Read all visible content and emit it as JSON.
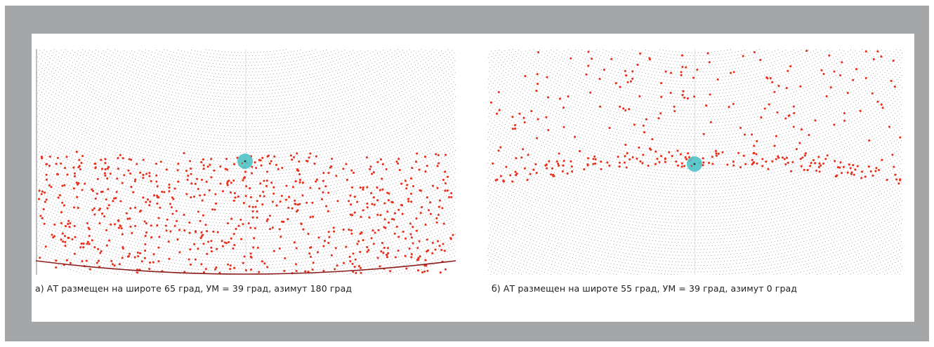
{
  "figure": {
    "panels": [
      {
        "id": "a",
        "caption": "а) АТ размещен на широте 65 град, УМ = 39 град, азимут 180 град",
        "latitude_deg": 65,
        "elevation_deg": 39,
        "azimuth_deg": 180,
        "satellite_band": "lower",
        "horizon_arc_visible": true
      },
      {
        "id": "b",
        "caption": "б) АТ размещен на широте 55 град, УМ = 39 град, азимут 0 град",
        "latitude_deg": 55,
        "elevation_deg": 39,
        "azimuth_deg": 0,
        "satellite_band": "upper",
        "horizon_arc_visible": false
      }
    ],
    "colors": {
      "background_frame": "#a4a6a8",
      "grid_dot": "#8a8a8a",
      "satellite_dot": "#e8321e",
      "antenna_beam": "#4fc3c7",
      "horizon_arc": "#8b1a1a"
    }
  }
}
